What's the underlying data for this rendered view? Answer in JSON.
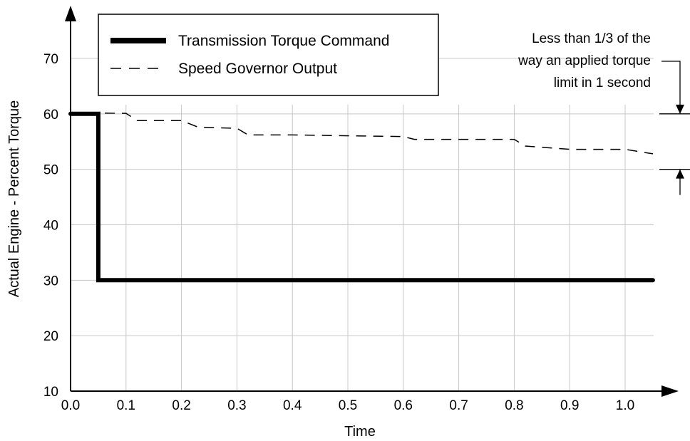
{
  "chart_data": {
    "type": "line",
    "title": "",
    "xlabel": "Time",
    "ylabel": "Actual Engine - Percent Torque",
    "xlim": [
      0.0,
      1.05
    ],
    "ylim": [
      10,
      75
    ],
    "grid": true,
    "x_ticks": [
      "0.0",
      "0.1",
      "0.2",
      "0.3",
      "0.4",
      "0.5",
      "0.6",
      "0.7",
      "0.8",
      "0.9",
      "1.0"
    ],
    "y_ticks": [
      "10",
      "20",
      "30",
      "40",
      "50",
      "60",
      "70"
    ],
    "x_tick_values": [
      0.0,
      0.1,
      0.2,
      0.3,
      0.4,
      0.5,
      0.6,
      0.7,
      0.8,
      0.9,
      1.0
    ],
    "y_tick_values": [
      10,
      20,
      30,
      40,
      50,
      60,
      70
    ],
    "legend_position": "top-left",
    "series": [
      {
        "name": "Transmission Torque Command",
        "style": "solid-thick",
        "color": "#000000",
        "x": [
          0.0,
          0.05,
          0.05,
          1.05
        ],
        "y": [
          60,
          60,
          30,
          30
        ]
      },
      {
        "name": "Speed Governor Output",
        "style": "dashed",
        "color": "#000000",
        "x": [
          0.0,
          0.1,
          0.12,
          0.2,
          0.23,
          0.3,
          0.32,
          0.4,
          0.6,
          0.62,
          0.8,
          0.82,
          0.9,
          1.0,
          1.05
        ],
        "y": [
          60.2,
          60.1,
          58.8,
          58.8,
          57.6,
          57.4,
          56.2,
          56.2,
          55.9,
          55.4,
          55.4,
          54.2,
          53.6,
          53.6,
          52.8
        ]
      }
    ],
    "annotation": {
      "lines": [
        "Less than 1/3 of the",
        "way an applied torque",
        "limit in 1 second"
      ],
      "bracket_values": [
        60,
        50
      ]
    }
  }
}
